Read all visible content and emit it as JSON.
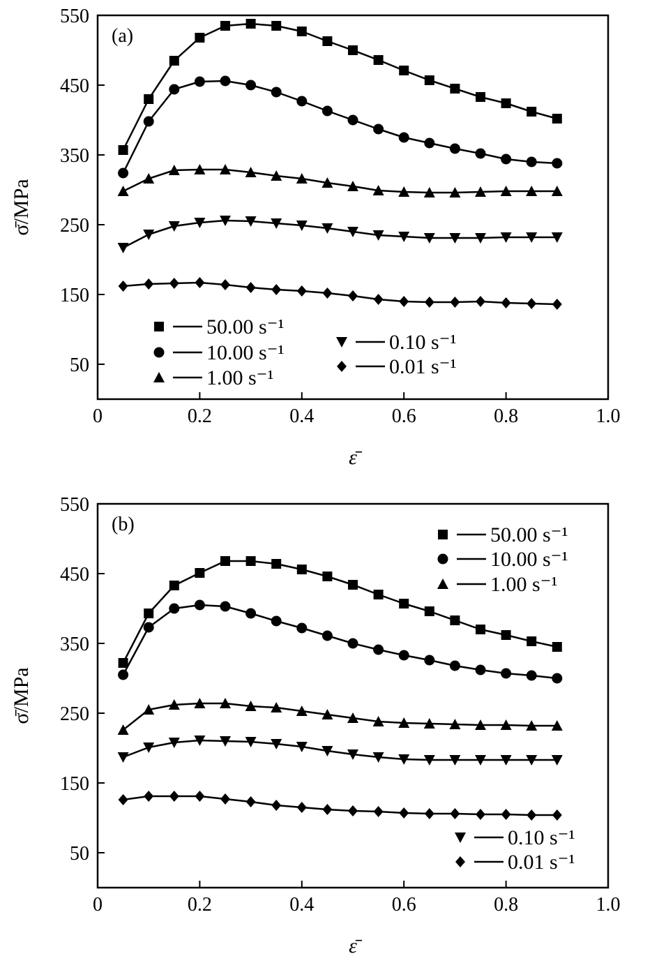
{
  "chart_data": [
    {
      "type": "line",
      "panel_label": "(a)",
      "xlabel": "ε̄",
      "ylabel": "σ̄/MPa",
      "xlim": [
        0,
        1.0
      ],
      "ylim": [
        0,
        550
      ],
      "x_ticks": [
        "0",
        "0.2",
        "0.4",
        "0.6",
        "0.8",
        "1.0"
      ],
      "y_ticks": [
        "50",
        "150",
        "250",
        "350",
        "450",
        "550"
      ],
      "x": [
        0.05,
        0.1,
        0.15,
        0.2,
        0.25,
        0.3,
        0.35,
        0.4,
        0.45,
        0.5,
        0.55,
        0.6,
        0.65,
        0.7,
        0.75,
        0.8,
        0.85,
        0.9
      ],
      "legend_placement": "bottom-left",
      "series": [
        {
          "name": "50.00 s⁻¹",
          "marker": "square",
          "values": [
            357,
            430,
            485,
            518,
            535,
            538,
            535,
            527,
            513,
            500,
            486,
            471,
            457,
            445,
            433,
            424,
            412,
            402
          ]
        },
        {
          "name": "10.00 s⁻¹",
          "marker": "circle",
          "values": [
            324,
            398,
            444,
            455,
            456,
            450,
            440,
            427,
            413,
            400,
            387,
            375,
            367,
            359,
            352,
            344,
            340,
            338
          ]
        },
        {
          "name": "1.00 s⁻¹",
          "marker": "triangle-up",
          "values": [
            298,
            316,
            328,
            329,
            329,
            325,
            320,
            316,
            310,
            305,
            299,
            297,
            296,
            296,
            297,
            298,
            298,
            298
          ]
        },
        {
          "name": "0.10 s⁻¹",
          "marker": "triangle-down",
          "values": [
            217,
            236,
            248,
            253,
            256,
            255,
            252,
            249,
            245,
            240,
            235,
            233,
            231,
            231,
            231,
            232,
            232,
            232
          ]
        },
        {
          "name": "0.01 s⁻¹",
          "marker": "diamond",
          "values": [
            162,
            165,
            166,
            167,
            164,
            160,
            157,
            155,
            152,
            148,
            143,
            140,
            139,
            139,
            140,
            138,
            137,
            136
          ]
        }
      ]
    },
    {
      "type": "line",
      "panel_label": "(b)",
      "xlabel": "ε̄",
      "ylabel": "σ̄/MPa",
      "xlim": [
        0,
        1.0
      ],
      "ylim": [
        0,
        550
      ],
      "x_ticks": [
        "0",
        "0.2",
        "0.4",
        "0.6",
        "0.8",
        "1.0"
      ],
      "y_ticks": [
        "50",
        "150",
        "250",
        "350",
        "450",
        "550"
      ],
      "x": [
        0.05,
        0.1,
        0.15,
        0.2,
        0.25,
        0.3,
        0.35,
        0.4,
        0.45,
        0.5,
        0.55,
        0.6,
        0.65,
        0.7,
        0.75,
        0.8,
        0.85,
        0.9
      ],
      "legend_placement": "top-right and bottom-right",
      "series": [
        {
          "name": "50.00 s⁻¹",
          "marker": "square",
          "values": [
            322,
            393,
            433,
            451,
            468,
            468,
            464,
            456,
            446,
            434,
            420,
            407,
            396,
            383,
            370,
            362,
            353,
            345
          ]
        },
        {
          "name": "10.00 s⁻¹",
          "marker": "circle",
          "values": [
            305,
            373,
            400,
            405,
            403,
            393,
            382,
            372,
            361,
            350,
            341,
            333,
            326,
            318,
            312,
            307,
            304,
            300
          ]
        },
        {
          "name": "1.00 s⁻¹",
          "marker": "triangle-up",
          "values": [
            226,
            255,
            262,
            264,
            264,
            260,
            258,
            253,
            248,
            243,
            238,
            236,
            235,
            234,
            233,
            233,
            232,
            232
          ]
        },
        {
          "name": "0.10 s⁻¹",
          "marker": "triangle-down",
          "values": [
            187,
            201,
            208,
            211,
            210,
            209,
            206,
            202,
            196,
            191,
            187,
            184,
            183,
            183,
            183,
            183,
            183,
            183
          ]
        },
        {
          "name": "0.01 s⁻¹",
          "marker": "diamond",
          "values": [
            126,
            131,
            131,
            131,
            127,
            123,
            118,
            115,
            112,
            110,
            109,
            107,
            106,
            106,
            105,
            105,
            104,
            104
          ]
        }
      ]
    }
  ]
}
